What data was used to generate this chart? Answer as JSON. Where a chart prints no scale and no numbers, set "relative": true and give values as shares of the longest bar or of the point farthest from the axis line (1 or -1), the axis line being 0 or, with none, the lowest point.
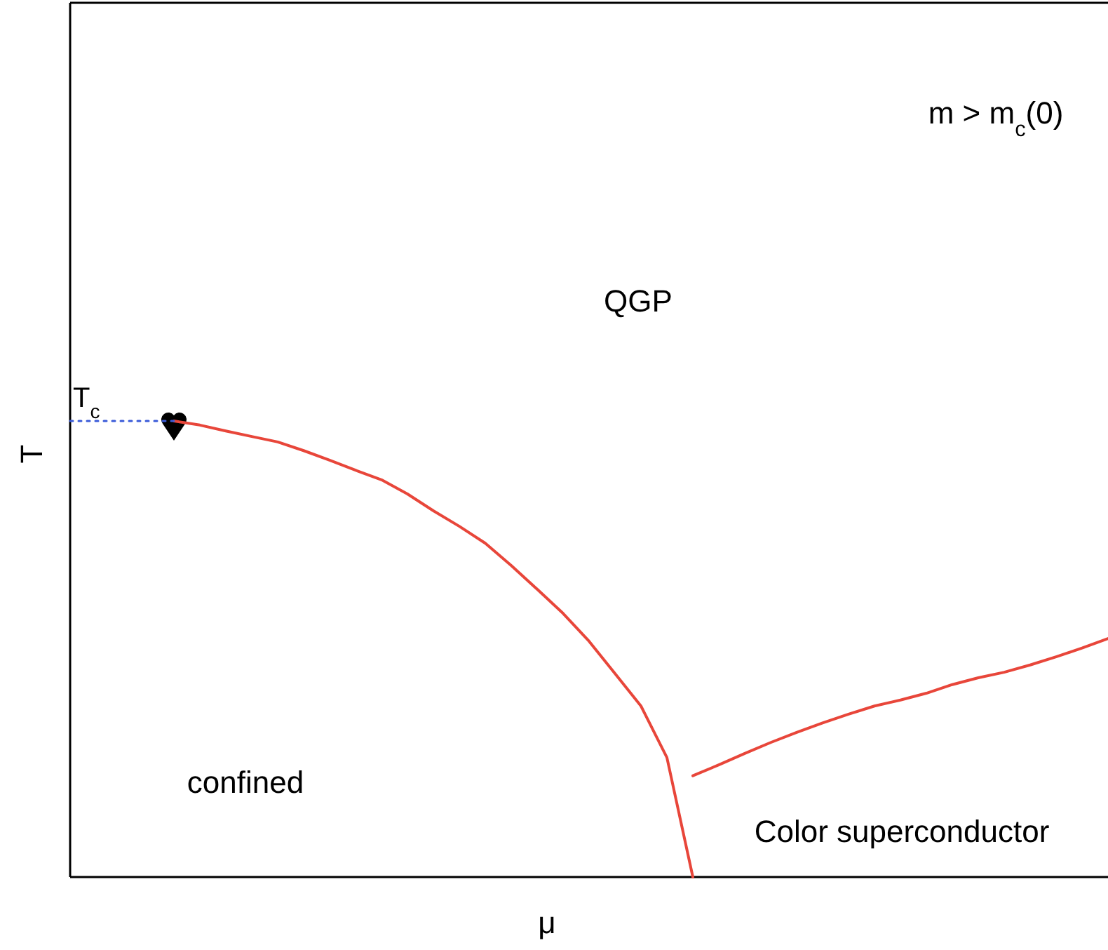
{
  "chart_data": {
    "type": "line",
    "relative": true,
    "xlabel": "μ",
    "ylabel": "T",
    "categories": [
      null,
      null,
      null,
      null,
      null,
      null,
      null,
      null,
      null,
      null,
      null,
      null,
      null,
      null,
      null,
      null,
      null,
      null,
      null,
      null,
      null,
      null,
      null,
      null,
      null,
      null,
      null,
      null,
      null,
      null,
      null,
      null,
      null,
      null,
      null,
      null,
      null,
      null,
      null,
      null,
      null
    ],
    "series": [
      {
        "color": "#e8463a",
        "line_style": "solid",
        "values": [
          null,
          null,
          null,
          null,
          1,
          0.991,
          0.978,
          0.966,
          0.954,
          0.935,
          0.914,
          0.892,
          0.871,
          0.84,
          0.803,
          0.769,
          0.732,
          0.683,
          0.631,
          0.578,
          0.517,
          0.446,
          0.375,
          0.262,
          0,
          null,
          null,
          null,
          null,
          null,
          null,
          null,
          null,
          null,
          null,
          null,
          null,
          null,
          null,
          null,
          null
        ]
      },
      {
        "color": "#e8463a",
        "line_style": "solid",
        "values": [
          null,
          null,
          null,
          null,
          null,
          null,
          null,
          null,
          null,
          null,
          null,
          null,
          null,
          null,
          null,
          null,
          null,
          null,
          null,
          null,
          null,
          null,
          null,
          null,
          0.222,
          0.246,
          0.271,
          0.295,
          0.317,
          0.338,
          0.357,
          0.375,
          0.388,
          0.403,
          0.422,
          0.437,
          0.449,
          0.465,
          0.483,
          0.502,
          0.523
        ]
      },
      {
        "color": "#3a5bd9",
        "line_style": "dotted",
        "values": [
          1,
          1,
          1,
          1,
          1,
          null,
          null,
          null,
          null,
          null,
          null,
          null,
          null,
          null,
          null,
          null,
          null,
          null,
          null,
          null,
          null,
          null,
          null,
          null,
          null,
          null,
          null,
          null,
          null,
          null,
          null,
          null,
          null,
          null,
          null,
          null,
          null,
          null,
          null,
          null,
          null
        ]
      }
    ],
    "annotations": [
      "T$_{c}$",
      "QGP",
      "m > m$_{c}$(0)",
      "confined",
      "Color superconductor"
    ]
  }
}
